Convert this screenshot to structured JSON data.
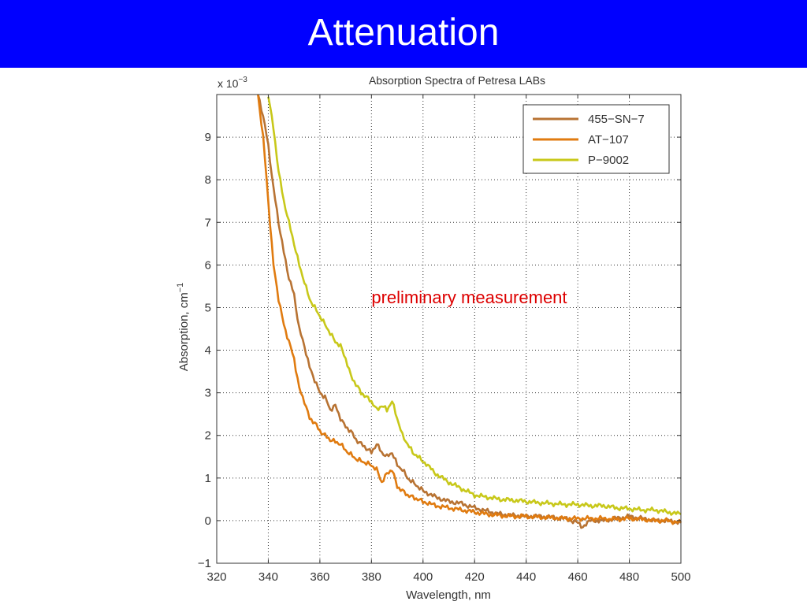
{
  "slide": {
    "title": "Attenuation",
    "header_color": "#0000ff"
  },
  "chart_data": {
    "type": "line",
    "title": "Absorption Spectra of Petresa LABs",
    "xlabel": "Wavelength, nm",
    "ylabel": "Absorption, cm",
    "ylabel_exp": "−1",
    "y_multiplier": "x 10",
    "y_multiplier_exp": "−3",
    "xlim": [
      320,
      500
    ],
    "ylim": [
      -1,
      10
    ],
    "x_ticks": [
      320,
      340,
      360,
      380,
      400,
      420,
      440,
      460,
      480,
      500
    ],
    "x_tick_labels": [
      "320",
      "340",
      "360",
      "380",
      "400",
      "420",
      "440",
      "460",
      "480",
      "500"
    ],
    "y_ticks": [
      -1,
      0,
      1,
      2,
      3,
      4,
      5,
      6,
      7,
      8,
      9
    ],
    "y_tick_labels": [
      "−1",
      "0",
      "1",
      "2",
      "3",
      "4",
      "5",
      "6",
      "7",
      "8",
      "9"
    ],
    "grid": true,
    "legend_position": "top-right",
    "annotation": {
      "text": "preliminary measurement",
      "x": 380,
      "y": 5.1,
      "color": "#dd0000"
    },
    "series": [
      {
        "name": "455−SN−7",
        "color": "#b87333",
        "x": [
          336,
          338,
          340,
          342,
          344,
          346,
          348,
          350,
          352,
          354,
          356,
          358,
          360,
          362,
          364,
          366,
          368,
          370,
          372,
          374,
          376,
          378,
          380,
          382,
          384,
          386,
          388,
          390,
          392,
          394,
          396,
          398,
          400,
          405,
          410,
          415,
          420,
          425,
          430,
          435,
          440,
          445,
          450,
          455,
          460,
          462,
          465,
          470,
          475,
          480,
          485,
          490,
          495,
          500
        ],
        "y": [
          10.0,
          9.5,
          8.8,
          7.8,
          7.0,
          6.3,
          5.7,
          5.3,
          4.5,
          4.1,
          3.6,
          3.3,
          3.0,
          2.9,
          2.6,
          2.7,
          2.4,
          2.2,
          2.1,
          1.9,
          1.8,
          1.7,
          1.6,
          1.8,
          1.6,
          1.5,
          1.6,
          1.3,
          1.2,
          1.0,
          0.9,
          0.8,
          0.7,
          0.55,
          0.45,
          0.4,
          0.3,
          0.22,
          0.15,
          0.12,
          0.1,
          0.1,
          0.08,
          0.05,
          -0.05,
          -0.15,
          0.0,
          0.0,
          0.05,
          0.1,
          0.05,
          0.0,
          0.0,
          -0.05
        ]
      },
      {
        "name": "AT−107",
        "color": "#e07b10",
        "x": [
          336,
          338,
          340,
          342,
          344,
          346,
          348,
          350,
          352,
          354,
          356,
          358,
          360,
          362,
          364,
          366,
          368,
          370,
          372,
          374,
          376,
          378,
          380,
          382,
          384,
          386,
          388,
          390,
          392,
          394,
          396,
          398,
          400,
          405,
          410,
          415,
          420,
          425,
          430,
          435,
          440,
          445,
          450,
          455,
          460,
          465,
          470,
          475,
          480,
          485,
          490,
          495,
          500
        ],
        "y": [
          10.0,
          9.0,
          7.5,
          6.0,
          5.2,
          4.6,
          4.2,
          3.8,
          3.1,
          2.8,
          2.4,
          2.3,
          2.1,
          2.0,
          1.9,
          1.85,
          1.8,
          1.65,
          1.55,
          1.45,
          1.4,
          1.35,
          1.3,
          1.2,
          0.9,
          1.1,
          1.2,
          0.8,
          0.7,
          0.6,
          0.55,
          0.5,
          0.45,
          0.35,
          0.3,
          0.25,
          0.2,
          0.15,
          0.12,
          0.1,
          0.1,
          0.08,
          0.07,
          0.05,
          0.05,
          0.05,
          0.05,
          0.03,
          0.05,
          0.03,
          0.0,
          0.0,
          -0.05
        ]
      },
      {
        "name": "P−9002",
        "color": "#c8c81a",
        "x": [
          340,
          342,
          344,
          346,
          348,
          350,
          352,
          354,
          356,
          358,
          360,
          362,
          364,
          366,
          368,
          370,
          372,
          374,
          376,
          378,
          380,
          382,
          384,
          386,
          388,
          390,
          392,
          394,
          396,
          398,
          400,
          405,
          410,
          415,
          420,
          425,
          430,
          435,
          440,
          445,
          450,
          455,
          460,
          465,
          470,
          475,
          480,
          485,
          490,
          495,
          500
        ],
        "y": [
          10.0,
          9.2,
          8.2,
          7.5,
          7.0,
          6.5,
          6.0,
          5.6,
          5.2,
          5.0,
          4.8,
          4.6,
          4.4,
          4.2,
          4.1,
          3.8,
          3.4,
          3.2,
          3.0,
          2.9,
          2.8,
          2.6,
          2.7,
          2.6,
          2.8,
          2.4,
          2.0,
          1.8,
          1.6,
          1.5,
          1.4,
          1.1,
          0.9,
          0.75,
          0.6,
          0.55,
          0.5,
          0.48,
          0.45,
          0.42,
          0.4,
          0.38,
          0.38,
          0.35,
          0.35,
          0.3,
          0.28,
          0.25,
          0.25,
          0.2,
          0.15
        ]
      }
    ]
  }
}
